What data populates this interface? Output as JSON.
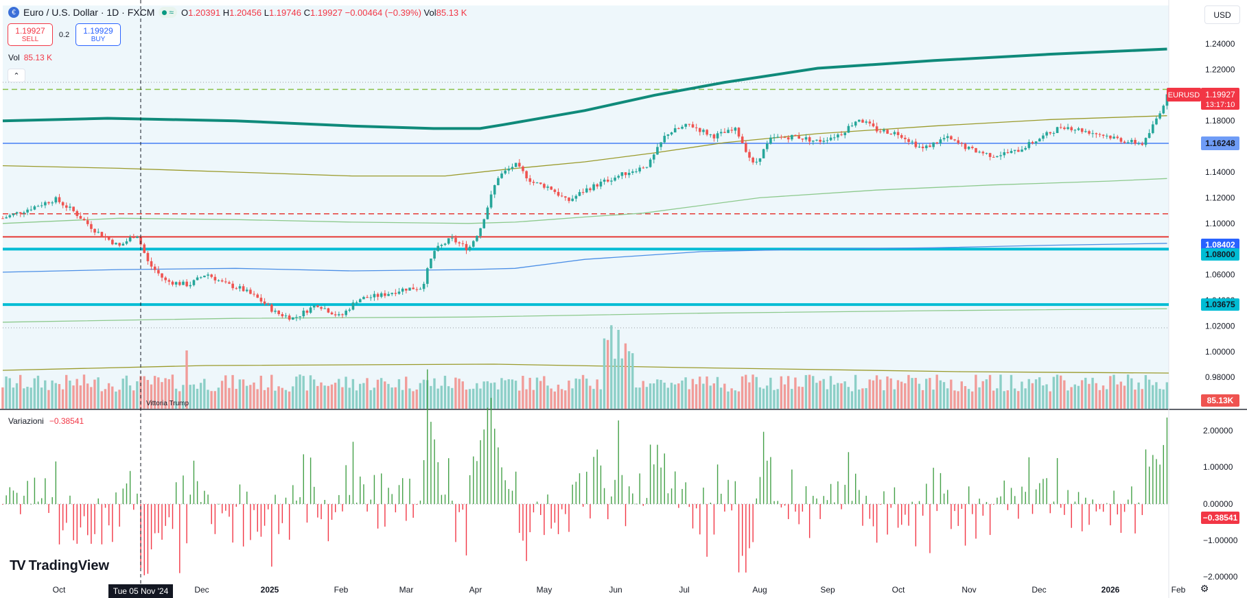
{
  "header": {
    "symbol": "Euro / U.S. Dollar · 1D · FXCM",
    "open_label": "O",
    "open": "1.20391",
    "high_label": "H",
    "high": "1.20456",
    "low_label": "L",
    "low": "1.19746",
    "close_label": "C",
    "close": "1.19927",
    "change": "−0.00464 (−0.39%)",
    "vol_label": "Vol",
    "vol": "85.13 K"
  },
  "trade": {
    "sell_price": "1.19927",
    "sell_label": "SELL",
    "buy_price": "1.19929",
    "buy_label": "BUY",
    "spread": "0.2"
  },
  "volume_legend": {
    "label": "Vol",
    "value": "85.13 K"
  },
  "currency_selector": "USD",
  "variation_legend": {
    "label": "Variazioni",
    "value": "−0.38541"
  },
  "logo_text": "TradingView",
  "icons": [
    "currency-flag-icon",
    "status-dot-icon",
    "wave-icon",
    "chevron-up-icon",
    "tradingview-logo-icon",
    "settings-icon"
  ],
  "colors": {
    "up": "#089981",
    "down": "#f23645",
    "up_bar": "#26a69a",
    "down_bar": "#ef5350",
    "bg_tint": "#eef7fb",
    "level_blue": "#00bcd4",
    "level_lightblue": "#6f9cf6",
    "ma_dark": "#0f8a7a",
    "ma_olive": "#9a9a2a",
    "ma_green": "#8cc98c",
    "ma_blue": "#4a8ee6",
    "red_level": "#e53935",
    "lime_dash": "#8bc34a"
  },
  "chart_data": {
    "type": "candlestick",
    "symbol": "EURUSD",
    "price_axis": {
      "ticks": [
        "1.24000",
        "1.22000",
        "1.18000",
        "1.14000",
        "1.12000",
        "1.10000",
        "1.06000",
        "1.04000",
        "1.02000",
        "1.00000",
        "0.98000"
      ],
      "ylim": [
        0.972,
        1.252
      ]
    },
    "time_axis": {
      "ticks": [
        "Oct",
        "Dec",
        "2025",
        "Feb",
        "Mar",
        "Apr",
        "May",
        "Jun",
        "Jul",
        "Aug",
        "Sep",
        "Oct",
        "Nov",
        "Dec",
        "2026",
        "Feb"
      ],
      "crosshair_label": "Tue 05 Nov '24"
    },
    "price_labels": [
      {
        "label": "EURUSD",
        "value": "1.19927",
        "countdown": "13:17:10"
      },
      {
        "value": "1.16248"
      },
      {
        "value": "1.08402"
      },
      {
        "value": "1.08000"
      },
      {
        "value": "1.03675"
      },
      {
        "value": "85.13K"
      }
    ],
    "horizontal_levels": [
      {
        "price": 1.16248,
        "style": "solid",
        "color": "light-blue"
      },
      {
        "price": 1.08,
        "style": "thick",
        "color": "cyan"
      },
      {
        "price": 1.03675,
        "style": "thick",
        "color": "cyan"
      },
      {
        "price": 1.0895,
        "style": "solid",
        "color": "red"
      },
      {
        "price": 1.1075,
        "style": "dashed",
        "color": "red"
      },
      {
        "price": 1.2045,
        "style": "dashed",
        "color": "lime"
      }
    ],
    "moving_averages": [
      {
        "color": "dark-green",
        "points": [
          [
            0,
            1.18
          ],
          [
            0.09,
            1.182
          ],
          [
            0.2,
            1.18
          ],
          [
            0.3,
            1.176
          ],
          [
            0.37,
            1.174
          ],
          [
            0.41,
            1.174
          ],
          [
            0.43,
            1.177
          ],
          [
            0.5,
            1.188
          ],
          [
            0.56,
            1.2
          ],
          [
            0.62,
            1.21
          ],
          [
            0.7,
            1.221
          ],
          [
            0.8,
            1.227
          ],
          [
            0.9,
            1.232
          ],
          [
            1,
            1.236
          ]
        ]
      },
      {
        "color": "olive",
        "points": [
          [
            0,
            1.145
          ],
          [
            0.1,
            1.143
          ],
          [
            0.2,
            1.14
          ],
          [
            0.3,
            1.137
          ],
          [
            0.38,
            1.137
          ],
          [
            0.43,
            1.142
          ],
          [
            0.5,
            1.148
          ],
          [
            0.56,
            1.155
          ],
          [
            0.62,
            1.163
          ],
          [
            0.7,
            1.17
          ],
          [
            0.8,
            1.176
          ],
          [
            0.9,
            1.181
          ],
          [
            1,
            1.184
          ]
        ]
      },
      {
        "color": "light-green",
        "points": [
          [
            0,
            1.1
          ],
          [
            0.1,
            1.104
          ],
          [
            0.2,
            1.103
          ],
          [
            0.3,
            1.101
          ],
          [
            0.4,
            1.1
          ],
          [
            0.44,
            1.101
          ],
          [
            0.5,
            1.105
          ],
          [
            0.55,
            1.108
          ],
          [
            0.65,
            1.12
          ],
          [
            0.75,
            1.126
          ],
          [
            0.85,
            1.13
          ],
          [
            0.95,
            1.133
          ],
          [
            1,
            1.135
          ]
        ]
      },
      {
        "color": "blue",
        "points": [
          [
            0,
            1.062
          ],
          [
            0.1,
            1.064
          ],
          [
            0.2,
            1.065
          ],
          [
            0.3,
            1.063
          ],
          [
            0.4,
            1.064
          ],
          [
            0.44,
            1.065
          ],
          [
            0.5,
            1.072
          ],
          [
            0.6,
            1.078
          ],
          [
            0.7,
            1.08
          ],
          [
            0.8,
            1.081
          ],
          [
            0.9,
            1.083
          ],
          [
            1,
            1.0845
          ]
        ]
      },
      {
        "color": "light-green",
        "points": [
          [
            0,
            1.023
          ],
          [
            0.2,
            1.026
          ],
          [
            0.4,
            1.027
          ],
          [
            0.6,
            1.03
          ],
          [
            0.8,
            1.032
          ],
          [
            1,
            1.0335
          ]
        ]
      }
    ],
    "series": [
      {
        "name": "EURUSD",
        "close_path": [
          [
            0,
            1.104
          ],
          [
            0.03,
            1.114
          ],
          [
            0.045,
            1.119
          ],
          [
            0.06,
            1.11
          ],
          [
            0.08,
            1.094
          ],
          [
            0.1,
            1.082
          ],
          [
            0.115,
            1.092
          ],
          [
            0.125,
            1.069
          ],
          [
            0.14,
            1.055
          ],
          [
            0.16,
            1.052
          ],
          [
            0.175,
            1.061
          ],
          [
            0.19,
            1.053
          ],
          [
            0.205,
            1.049
          ],
          [
            0.22,
            1.041
          ],
          [
            0.235,
            1.03
          ],
          [
            0.25,
            1.026
          ],
          [
            0.27,
            1.037
          ],
          [
            0.29,
            1.027
          ],
          [
            0.305,
            1.041
          ],
          [
            0.325,
            1.044
          ],
          [
            0.345,
            1.049
          ],
          [
            0.36,
            1.05
          ],
          [
            0.37,
            1.078
          ],
          [
            0.385,
            1.088
          ],
          [
            0.4,
            1.08
          ],
          [
            0.41,
            1.096
          ],
          [
            0.425,
            1.136
          ],
          [
            0.44,
            1.146
          ],
          [
            0.455,
            1.132
          ],
          [
            0.47,
            1.128
          ],
          [
            0.485,
            1.117
          ],
          [
            0.5,
            1.126
          ],
          [
            0.52,
            1.134
          ],
          [
            0.54,
            1.141
          ],
          [
            0.555,
            1.146
          ],
          [
            0.57,
            1.17
          ],
          [
            0.59,
            1.177
          ],
          [
            0.61,
            1.168
          ],
          [
            0.63,
            1.173
          ],
          [
            0.645,
            1.145
          ],
          [
            0.66,
            1.166
          ],
          [
            0.68,
            1.168
          ],
          [
            0.7,
            1.164
          ],
          [
            0.72,
            1.17
          ],
          [
            0.735,
            1.182
          ],
          [
            0.75,
            1.173
          ],
          [
            0.77,
            1.17
          ],
          [
            0.79,
            1.158
          ],
          [
            0.81,
            1.167
          ],
          [
            0.83,
            1.158
          ],
          [
            0.85,
            1.153
          ],
          [
            0.87,
            1.156
          ],
          [
            0.89,
            1.166
          ],
          [
            0.91,
            1.176
          ],
          [
            0.93,
            1.172
          ],
          [
            0.95,
            1.168
          ],
          [
            0.965,
            1.164
          ],
          [
            0.98,
            1.162
          ],
          [
            0.99,
            1.18
          ],
          [
            1,
            1.199
          ]
        ]
      },
      {
        "name": "Vol",
        "bars_relative_max": 1
      },
      {
        "name": "Variazioni",
        "axis_ticks": [
          "2.00000",
          "1.00000",
          "0.00000",
          "−1.00000",
          "−2.00000"
        ],
        "ylim": [
          -2.35,
          2.35
        ]
      }
    ],
    "annotations": [
      {
        "text": "Vittoria Trump"
      }
    ]
  }
}
